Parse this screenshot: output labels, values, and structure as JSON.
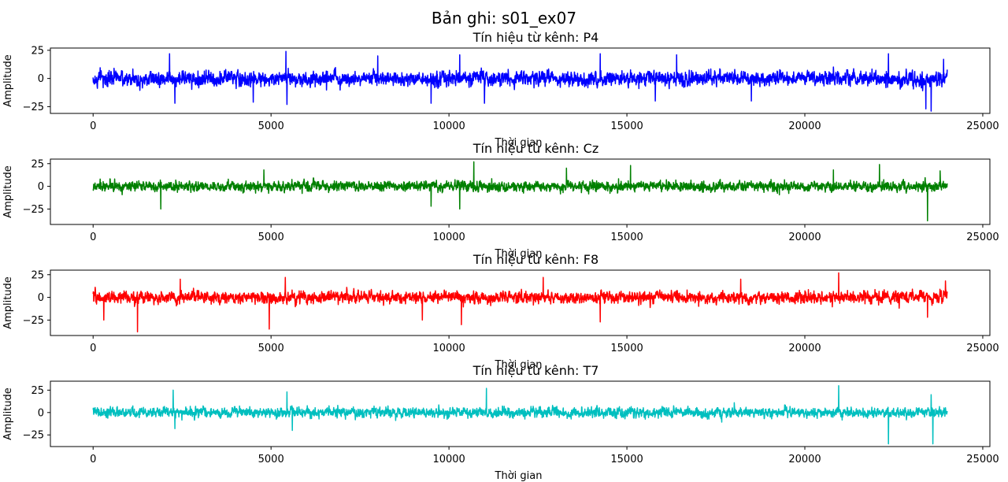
{
  "figure": {
    "suptitle": "Bản ghi: s01_ex07"
  },
  "chart_data": [
    {
      "type": "line",
      "title": "Tín hiệu từ kênh: P4",
      "xlabel": "Thời gian",
      "ylabel": "Amplitude",
      "xlim": [
        -1200,
        25200
      ],
      "ylim": [
        -31,
        27
      ],
      "xticks": [
        0,
        5000,
        10000,
        15000,
        20000,
        25000
      ],
      "xtick_labels": [
        "0",
        "5000",
        "10000",
        "15000",
        "20000",
        "25000"
      ],
      "yticks": [
        -25,
        0,
        25
      ],
      "ytick_labels": [
        "−25",
        "0",
        "25"
      ],
      "grid": false,
      "series": [
        {
          "color": "#0000ff",
          "x_range": [
            0,
            24000
          ],
          "n_points": 24000,
          "typical_range": [
            -12,
            12
          ],
          "spikes": [
            {
              "x": 2150,
              "y": 22
            },
            {
              "x": 2300,
              "y": -22
            },
            {
              "x": 4500,
              "y": -21
            },
            {
              "x": 5420,
              "y": 24
            },
            {
              "x": 5450,
              "y": -23
            },
            {
              "x": 8000,
              "y": 20
            },
            {
              "x": 9500,
              "y": -22
            },
            {
              "x": 10300,
              "y": 21
            },
            {
              "x": 11000,
              "y": -22
            },
            {
              "x": 14250,
              "y": 22
            },
            {
              "x": 15800,
              "y": -20
            },
            {
              "x": 16400,
              "y": 21
            },
            {
              "x": 18500,
              "y": -20
            },
            {
              "x": 22350,
              "y": 22
            },
            {
              "x": 23400,
              "y": -27
            },
            {
              "x": 23550,
              "y": -29
            },
            {
              "x": 23900,
              "y": 17
            }
          ]
        }
      ]
    },
    {
      "type": "line",
      "title": "Tín hiệu từ kênh: Cz",
      "xlabel": "Thời gian",
      "ylabel": "Amplitude",
      "xlim": [
        -1200,
        25200
      ],
      "ylim": [
        -42,
        30
      ],
      "xticks": [
        0,
        5000,
        10000,
        15000,
        20000,
        25000
      ],
      "xtick_labels": [
        "0",
        "5000",
        "10000",
        "15000",
        "20000",
        "25000"
      ],
      "yticks": [
        -25,
        0,
        25
      ],
      "ytick_labels": [
        "−25",
        "0",
        "25"
      ],
      "grid": false,
      "series": [
        {
          "color": "#008000",
          "x_range": [
            0,
            24000
          ],
          "n_points": 24000,
          "typical_range": [
            -10,
            10
          ],
          "spikes": [
            {
              "x": 1900,
              "y": -25
            },
            {
              "x": 4800,
              "y": 18
            },
            {
              "x": 9500,
              "y": -22
            },
            {
              "x": 10700,
              "y": 27
            },
            {
              "x": 10300,
              "y": -25
            },
            {
              "x": 13300,
              "y": 20
            },
            {
              "x": 15100,
              "y": 23
            },
            {
              "x": 20800,
              "y": 18
            },
            {
              "x": 22100,
              "y": 24
            },
            {
              "x": 23450,
              "y": -38
            },
            {
              "x": 23800,
              "y": 17
            }
          ]
        }
      ]
    },
    {
      "type": "line",
      "title": "Tín hiệu từ kênh: F8",
      "xlabel": "Thời gian",
      "ylabel": "Amplitude",
      "xlim": [
        -1200,
        25200
      ],
      "ylim": [
        -42,
        30
      ],
      "xticks": [
        0,
        5000,
        10000,
        15000,
        20000,
        25000
      ],
      "xtick_labels": [
        "0",
        "5000",
        "10000",
        "15000",
        "20000",
        "25000"
      ],
      "yticks": [
        -25,
        0,
        25
      ],
      "ytick_labels": [
        "−25",
        "0",
        "25"
      ],
      "grid": false,
      "series": [
        {
          "color": "#ff0000",
          "x_range": [
            0,
            24000
          ],
          "n_points": 24000,
          "typical_range": [
            -12,
            12
          ],
          "spikes": [
            {
              "x": 300,
              "y": -25
            },
            {
              "x": 1250,
              "y": -38
            },
            {
              "x": 2450,
              "y": 20
            },
            {
              "x": 4950,
              "y": -35
            },
            {
              "x": 5400,
              "y": 22
            },
            {
              "x": 9250,
              "y": -25
            },
            {
              "x": 10350,
              "y": -30
            },
            {
              "x": 12650,
              "y": 22
            },
            {
              "x": 14250,
              "y": -27
            },
            {
              "x": 18200,
              "y": 20
            },
            {
              "x": 20950,
              "y": 27
            },
            {
              "x": 23450,
              "y": -22
            },
            {
              "x": 23950,
              "y": 18
            }
          ]
        }
      ]
    },
    {
      "type": "line",
      "title": "Tín hiệu từ kênh: T7",
      "xlabel": "Thời gian",
      "ylabel": "Amplitude",
      "xlim": [
        -1200,
        25200
      ],
      "ylim": [
        -38,
        35
      ],
      "xticks": [
        0,
        5000,
        10000,
        15000,
        20000,
        25000
      ],
      "xtick_labels": [
        "0",
        "5000",
        "10000",
        "15000",
        "20000",
        "25000"
      ],
      "yticks": [
        -25,
        0,
        25
      ],
      "ytick_labels": [
        "−25",
        "0",
        "25"
      ],
      "grid": false,
      "series": [
        {
          "color": "#00bfbf",
          "x_range": [
            0,
            24000
          ],
          "n_points": 24000,
          "typical_range": [
            -10,
            10
          ],
          "spikes": [
            {
              "x": 2250,
              "y": 25
            },
            {
              "x": 2300,
              "y": -18
            },
            {
              "x": 5450,
              "y": 23
            },
            {
              "x": 5600,
              "y": -20
            },
            {
              "x": 11050,
              "y": 27
            },
            {
              "x": 20950,
              "y": 30
            },
            {
              "x": 22350,
              "y": -35
            },
            {
              "x": 23600,
              "y": -35
            },
            {
              "x": 23550,
              "y": 20
            }
          ]
        }
      ]
    }
  ]
}
